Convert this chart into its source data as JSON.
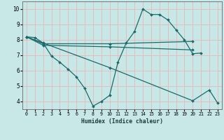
{
  "xlabel": "Humidex (Indice chaleur)",
  "xlim": [
    -0.5,
    23.5
  ],
  "ylim": [
    3.5,
    10.5
  ],
  "xticks": [
    0,
    1,
    2,
    3,
    4,
    5,
    6,
    7,
    8,
    9,
    10,
    11,
    12,
    13,
    14,
    15,
    16,
    17,
    18,
    19,
    20,
    21,
    22,
    23
  ],
  "yticks": [
    4,
    5,
    6,
    7,
    8,
    9,
    10
  ],
  "background_color": "#c8e8e8",
  "grid_color": "#e8b8b8",
  "line_color": "#1a6b6b",
  "series": [
    {
      "x": [
        0,
        1,
        2,
        3,
        4,
        5,
        6,
        7,
        8,
        9,
        10,
        11,
        12,
        13,
        14,
        15,
        16,
        17,
        18,
        19,
        20,
        21
      ],
      "y": [
        8.2,
        8.15,
        7.8,
        6.95,
        6.55,
        6.1,
        5.6,
        4.85,
        3.7,
        4.0,
        4.4,
        6.55,
        7.8,
        8.55,
        10.0,
        9.65,
        9.65,
        9.3,
        8.65,
        8.0,
        7.1,
        7.15
      ]
    },
    {
      "x": [
        0,
        2,
        10,
        20
      ],
      "y": [
        8.2,
        7.75,
        7.75,
        7.9
      ]
    },
    {
      "x": [
        0,
        2,
        10,
        20
      ],
      "y": [
        8.2,
        7.65,
        7.55,
        7.35
      ]
    },
    {
      "x": [
        0,
        10,
        20,
        22,
        23
      ],
      "y": [
        8.2,
        6.2,
        4.05,
        4.75,
        3.9
      ]
    }
  ]
}
